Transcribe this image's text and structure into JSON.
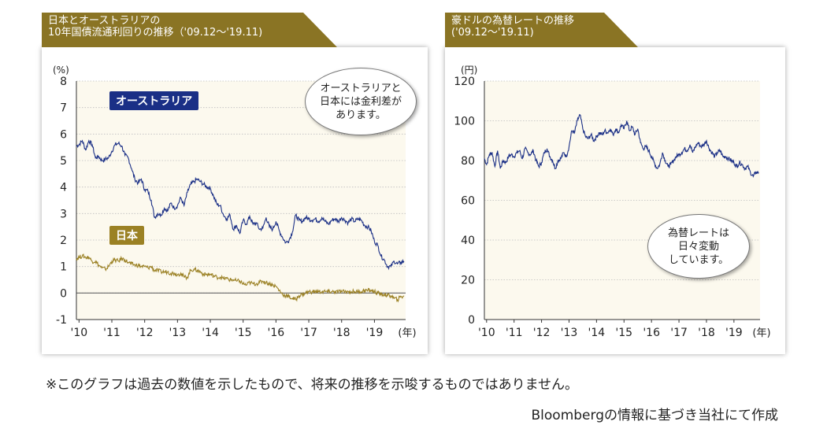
{
  "footnote": "※このグラフは過去の数値を示したもので、将来の推移を示唆するものではありません。",
  "source": "Bloombergの情報に基づき当社にて作成",
  "colors": {
    "header": "#8a7424",
    "bg": "#fcf9ee",
    "aus": "#1a2f86",
    "jpn": "#9b8124",
    "grid": "#bdbdbd"
  },
  "chart_data": [
    {
      "type": "line",
      "title_line1": "日本とオーストラリアの",
      "title_line2": "10年国債流通利回りの推移（'09.12〜'19.11)",
      "ylabel": "(%)",
      "xunit": "(年)",
      "ylim": [
        -1,
        8
      ],
      "yticks": [
        "8",
        "7",
        "6",
        "5",
        "4",
        "3",
        "2",
        "1",
        "0",
        "-1"
      ],
      "categories": [
        "'10",
        "'11",
        "'12",
        "'13",
        "'14",
        "'15",
        "'16",
        "'17",
        "'18",
        "'19"
      ],
      "callout": [
        "オーストラリアと",
        "日本には金利差が",
        "あります。"
      ],
      "series": [
        {
          "name": "オーストラリア",
          "x": [
            2009.92,
            2010.0,
            2010.1,
            2010.2,
            2010.3,
            2010.4,
            2010.5,
            2010.6,
            2010.7,
            2010.8,
            2010.9,
            2011.0,
            2011.1,
            2011.2,
            2011.3,
            2011.4,
            2011.5,
            2011.6,
            2011.7,
            2011.8,
            2011.9,
            2012.0,
            2012.1,
            2012.2,
            2012.3,
            2012.4,
            2012.5,
            2012.6,
            2012.7,
            2012.8,
            2012.9,
            2013.0,
            2013.1,
            2013.2,
            2013.3,
            2013.4,
            2013.5,
            2013.6,
            2013.7,
            2013.8,
            2013.9,
            2014.0,
            2014.1,
            2014.2,
            2014.3,
            2014.4,
            2014.5,
            2014.6,
            2014.7,
            2014.8,
            2014.9,
            2015.0,
            2015.1,
            2015.2,
            2015.3,
            2015.4,
            2015.5,
            2015.6,
            2015.7,
            2015.8,
            2015.9,
            2016.0,
            2016.1,
            2016.2,
            2016.3,
            2016.4,
            2016.5,
            2016.6,
            2016.7,
            2016.8,
            2016.9,
            2017.0,
            2017.1,
            2017.2,
            2017.3,
            2017.4,
            2017.5,
            2017.6,
            2017.7,
            2017.8,
            2017.9,
            2018.0,
            2018.1,
            2018.2,
            2018.3,
            2018.4,
            2018.5,
            2018.6,
            2018.7,
            2018.8,
            2018.9,
            2019.0,
            2019.1,
            2019.2,
            2019.3,
            2019.4,
            2019.5,
            2019.6,
            2019.7,
            2019.8,
            2019.9
          ],
          "values": [
            5.55,
            5.6,
            5.75,
            5.4,
            5.75,
            5.6,
            5.1,
            5.15,
            5.0,
            5.05,
            5.1,
            5.35,
            5.6,
            5.65,
            5.55,
            5.2,
            5.1,
            4.7,
            4.3,
            4.15,
            4.3,
            3.9,
            3.85,
            3.5,
            2.85,
            3.0,
            2.95,
            3.2,
            3.1,
            3.4,
            3.2,
            3.3,
            3.6,
            3.3,
            3.8,
            4.1,
            4.2,
            4.3,
            4.2,
            4.1,
            4.0,
            3.95,
            3.65,
            3.35,
            3.3,
            2.95,
            2.8,
            2.95,
            2.4,
            2.55,
            2.25,
            2.75,
            2.6,
            2.9,
            2.6,
            2.65,
            2.4,
            2.45,
            2.85,
            2.5,
            2.4,
            2.7,
            2.35,
            2.1,
            1.9,
            2.0,
            2.3,
            2.95,
            2.75,
            2.7,
            2.85,
            2.8,
            2.75,
            2.8,
            2.7,
            2.85,
            2.7,
            2.6,
            2.75,
            2.8,
            2.7,
            2.85,
            2.75,
            2.65,
            2.8,
            2.7,
            2.8,
            2.75,
            2.55,
            2.5,
            2.35,
            1.95,
            1.8,
            1.4,
            1.25,
            1.0,
            1.0,
            1.2,
            1.1,
            1.15,
            1.2
          ]
        },
        {
          "name": "日本",
          "x": [
            2009.92,
            2010.0,
            2010.1,
            2010.2,
            2010.3,
            2010.4,
            2010.5,
            2010.6,
            2010.7,
            2010.8,
            2010.9,
            2011.0,
            2011.1,
            2011.2,
            2011.3,
            2011.4,
            2011.5,
            2011.6,
            2011.7,
            2011.8,
            2011.9,
            2012.0,
            2012.1,
            2012.2,
            2012.3,
            2012.4,
            2012.5,
            2012.6,
            2012.7,
            2012.8,
            2012.9,
            2013.0,
            2013.1,
            2013.2,
            2013.3,
            2013.4,
            2013.5,
            2013.6,
            2013.7,
            2013.8,
            2013.9,
            2014.0,
            2014.1,
            2014.2,
            2014.3,
            2014.4,
            2014.5,
            2014.6,
            2014.7,
            2014.8,
            2014.9,
            2015.0,
            2015.1,
            2015.2,
            2015.3,
            2015.4,
            2015.5,
            2015.6,
            2015.7,
            2015.8,
            2015.9,
            2016.0,
            2016.1,
            2016.2,
            2016.3,
            2016.4,
            2016.5,
            2016.6,
            2016.7,
            2016.8,
            2016.9,
            2017.0,
            2017.1,
            2017.2,
            2017.3,
            2017.4,
            2017.5,
            2017.6,
            2017.7,
            2017.8,
            2017.9,
            2018.0,
            2018.1,
            2018.2,
            2018.3,
            2018.4,
            2018.5,
            2018.6,
            2018.7,
            2018.8,
            2018.9,
            2019.0,
            2019.1,
            2019.2,
            2019.3,
            2019.4,
            2019.5,
            2019.6,
            2019.7,
            2019.8,
            2019.9
          ],
          "values": [
            1.3,
            1.35,
            1.4,
            1.35,
            1.35,
            1.2,
            1.2,
            1.05,
            0.95,
            0.9,
            1.0,
            1.2,
            1.25,
            1.2,
            1.3,
            1.25,
            1.15,
            1.1,
            1.05,
            1.05,
            1.0,
            1.0,
            0.95,
            1.0,
            0.85,
            0.85,
            0.8,
            0.8,
            0.8,
            0.75,
            0.75,
            0.7,
            0.75,
            0.6,
            0.6,
            0.85,
            0.9,
            0.85,
            0.8,
            0.7,
            0.7,
            0.7,
            0.65,
            0.6,
            0.6,
            0.55,
            0.55,
            0.5,
            0.5,
            0.45,
            0.45,
            0.35,
            0.3,
            0.4,
            0.35,
            0.35,
            0.4,
            0.45,
            0.4,
            0.35,
            0.3,
            0.25,
            0.1,
            -0.05,
            -0.1,
            -0.15,
            -0.2,
            -0.25,
            -0.1,
            -0.05,
            0.0,
            0.05,
            0.05,
            0.05,
            0.05,
            0.05,
            0.05,
            0.05,
            0.05,
            0.05,
            0.05,
            0.05,
            0.05,
            0.05,
            0.05,
            0.05,
            0.05,
            0.05,
            0.1,
            0.1,
            0.1,
            0.05,
            0.0,
            -0.05,
            -0.05,
            -0.1,
            -0.1,
            -0.2,
            -0.25,
            -0.15,
            -0.1
          ]
        }
      ]
    },
    {
      "type": "line",
      "title_line1": "豪ドルの為替レートの推移",
      "title_line2": "('09.12〜'19.11)",
      "ylabel": "(円)",
      "xunit": "(年)",
      "ylim": [
        0,
        120
      ],
      "yticks": [
        "120",
        "100",
        "80",
        "60",
        "40",
        "20",
        "0"
      ],
      "categories": [
        "'10",
        "'11",
        "'12",
        "'13",
        "'14",
        "'15",
        "'16",
        "'17",
        "'18",
        "'19"
      ],
      "callout": [
        "為替レートは",
        "日々変動",
        "しています。"
      ],
      "series": [
        {
          "name": "",
          "x": [
            2009.92,
            2010.0,
            2010.1,
            2010.2,
            2010.3,
            2010.4,
            2010.5,
            2010.6,
            2010.7,
            2010.8,
            2010.9,
            2011.0,
            2011.1,
            2011.2,
            2011.3,
            2011.4,
            2011.5,
            2011.6,
            2011.7,
            2011.8,
            2011.9,
            2012.0,
            2012.1,
            2012.2,
            2012.3,
            2012.4,
            2012.5,
            2012.6,
            2012.7,
            2012.8,
            2012.9,
            2013.0,
            2013.1,
            2013.2,
            2013.3,
            2013.4,
            2013.5,
            2013.6,
            2013.7,
            2013.8,
            2013.9,
            2014.0,
            2014.1,
            2014.2,
            2014.3,
            2014.4,
            2014.5,
            2014.6,
            2014.7,
            2014.8,
            2014.9,
            2015.0,
            2015.1,
            2015.2,
            2015.3,
            2015.4,
            2015.5,
            2015.6,
            2015.7,
            2015.8,
            2015.9,
            2016.0,
            2016.1,
            2016.2,
            2016.3,
            2016.4,
            2016.5,
            2016.6,
            2016.7,
            2016.8,
            2016.9,
            2017.0,
            2017.1,
            2017.2,
            2017.3,
            2017.4,
            2017.5,
            2017.6,
            2017.7,
            2017.8,
            2017.9,
            2018.0,
            2018.1,
            2018.2,
            2018.3,
            2018.4,
            2018.5,
            2018.6,
            2018.7,
            2018.8,
            2018.9,
            2019.0,
            2019.1,
            2019.2,
            2019.3,
            2019.4,
            2019.5,
            2019.6,
            2019.7,
            2019.8,
            2019.9
          ],
          "values": [
            81,
            78,
            83,
            84,
            77,
            85,
            76,
            80,
            79,
            82,
            83,
            82,
            84,
            85,
            81,
            86,
            84,
            83,
            85,
            80,
            77,
            79,
            84,
            86,
            82,
            80,
            76,
            80,
            81,
            84,
            82,
            87,
            95,
            94,
            100,
            103,
            96,
            92,
            91,
            93,
            90,
            92,
            94,
            93,
            95,
            94,
            96,
            93,
            96,
            94,
            98,
            96,
            100,
            95,
            97,
            93,
            96,
            89,
            86,
            87,
            85,
            82,
            79,
            76,
            78,
            84,
            80,
            77,
            78,
            80,
            82,
            83,
            84,
            86,
            85,
            88,
            84,
            87,
            89,
            87,
            88,
            90,
            86,
            84,
            82,
            84,
            85,
            82,
            82,
            81,
            80,
            79,
            77,
            79,
            78,
            76,
            77,
            74,
            72,
            74,
            74
          ]
        }
      ]
    }
  ]
}
